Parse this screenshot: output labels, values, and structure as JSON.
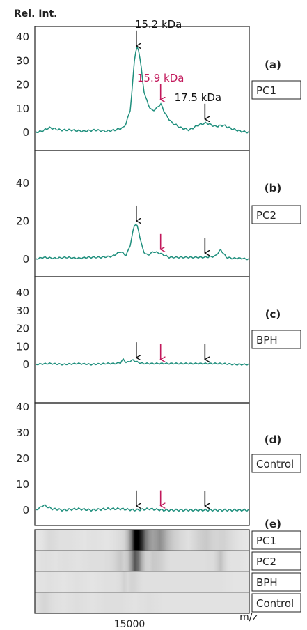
{
  "y_axis_label": "Rel. Int.",
  "x_axis_label": "m/z",
  "x_tick_label": "15000",
  "colors": {
    "trace": "#1f8f7d",
    "highlight": "#c2185b",
    "arrow": "#111111",
    "frame": "#222222"
  },
  "chart_data": [
    {
      "type": "line",
      "panel_label": "(a)",
      "sample": "PC1",
      "ylim": [
        -5,
        45
      ],
      "yticks": [
        "40",
        "30",
        "20",
        "10",
        "0"
      ],
      "xlim": [
        11500,
        19000
      ],
      "series": [
        {
          "x": [
            11500,
            11750,
            12000,
            12400,
            12800,
            13200,
            13600,
            14000,
            14300,
            14600,
            14700,
            14850,
            14950,
            15000,
            15100,
            15200,
            15300,
            15450,
            15600,
            15750,
            15900,
            16100,
            16300,
            16600,
            16900,
            17200,
            17500,
            17800,
            18100,
            18400,
            18700,
            19000
          ],
          "y": [
            0,
            0.5,
            2,
            1,
            1,
            0.5,
            1,
            0.5,
            1,
            2,
            4,
            10,
            25,
            33,
            36,
            30,
            18,
            12,
            9,
            10,
            12,
            7,
            4,
            2,
            1,
            3,
            4,
            2.5,
            3,
            1.5,
            0.5,
            0
          ]
        }
      ],
      "annotations": [
        {
          "text": "15.2 kDa",
          "x": 15050,
          "color": "arrow"
        },
        {
          "text": "15.9 kDa",
          "x": 15900,
          "color": "highlight"
        },
        {
          "text": "17.5 kDa",
          "x": 17450,
          "color": "arrow"
        }
      ]
    },
    {
      "type": "line",
      "panel_label": "(b)",
      "sample": "PC2",
      "ylim": [
        -5,
        50
      ],
      "yticks": [
        "40",
        "20",
        "0"
      ],
      "xlim": [
        11500,
        19000
      ],
      "series": [
        {
          "x": [
            11500,
            11800,
            12200,
            12600,
            13000,
            13400,
            13800,
            14200,
            14500,
            14700,
            14850,
            14950,
            15000,
            15100,
            15200,
            15300,
            15450,
            15650,
            15900,
            16200,
            16600,
            17000,
            17400,
            17800,
            18000,
            18200,
            18400,
            18700,
            19000
          ],
          "y": [
            0,
            1,
            0.5,
            1,
            0.5,
            1,
            1,
            1.5,
            4,
            2,
            8,
            16,
            19,
            17,
            10,
            4,
            2,
            4,
            3,
            1,
            1,
            1,
            1,
            1.5,
            5,
            1,
            0.5,
            0.5,
            0
          ]
        }
      ],
      "annotations": [
        {
          "text": "",
          "x": 15050,
          "color": "arrow"
        },
        {
          "text": "",
          "x": 15900,
          "color": "highlight"
        },
        {
          "text": "",
          "x": 17450,
          "color": "arrow"
        }
      ]
    },
    {
      "type": "line",
      "panel_label": "(c)",
      "sample": "BPH",
      "ylim": [
        -5,
        45
      ],
      "yticks": [
        "40",
        "30",
        "20",
        "10",
        "0"
      ],
      "xlim": [
        11500,
        19000
      ],
      "series": [
        {
          "x": [
            11500,
            12000,
            12500,
            13000,
            13500,
            14000,
            14300,
            14500,
            14600,
            14700,
            14850,
            14950,
            15050,
            15150,
            15300,
            15600,
            16000,
            16500,
            17000,
            17500,
            18000,
            18500,
            19000
          ],
          "y": [
            0,
            0.5,
            0,
            0.5,
            0,
            0.5,
            0.5,
            1,
            3,
            1,
            2,
            2.5,
            1.5,
            1,
            0.5,
            0.5,
            0.5,
            0.5,
            0.5,
            0.5,
            0.5,
            0,
            0
          ]
        }
      ],
      "annotations": [
        {
          "text": "",
          "x": 15050,
          "color": "arrow"
        },
        {
          "text": "",
          "x": 15900,
          "color": "highlight"
        },
        {
          "text": "",
          "x": 17450,
          "color": "arrow"
        }
      ]
    },
    {
      "type": "line",
      "panel_label": "(d)",
      "sample": "Control",
      "ylim": [
        -5,
        45
      ],
      "yticks": [
        "40",
        "30",
        "20",
        "10",
        "0"
      ],
      "xlim": [
        11500,
        19000
      ],
      "series": [
        {
          "x": [
            11500,
            11700,
            11800,
            11900,
            12100,
            12500,
            13000,
            13500,
            14000,
            14500,
            15000,
            15500,
            16000,
            16500,
            17000,
            17500,
            18000,
            18500,
            19000
          ],
          "y": [
            0,
            1,
            2,
            1.5,
            0.5,
            0,
            0.5,
            0,
            0.5,
            0.5,
            0,
            0.5,
            0,
            0,
            0,
            0,
            0,
            0,
            0
          ]
        }
      ],
      "annotations": [
        {
          "text": "",
          "x": 15050,
          "color": "arrow"
        },
        {
          "text": "",
          "x": 15900,
          "color": "highlight"
        },
        {
          "text": "",
          "x": 17450,
          "color": "arrow"
        }
      ]
    },
    {
      "type": "heatmap",
      "panel_label": "(e)",
      "rows": [
        "PC1",
        "PC2",
        "BPH",
        "Control"
      ],
      "xlim": [
        11500,
        19000
      ],
      "intensity_source": "traces of panels (a) to (d), same order"
    }
  ]
}
